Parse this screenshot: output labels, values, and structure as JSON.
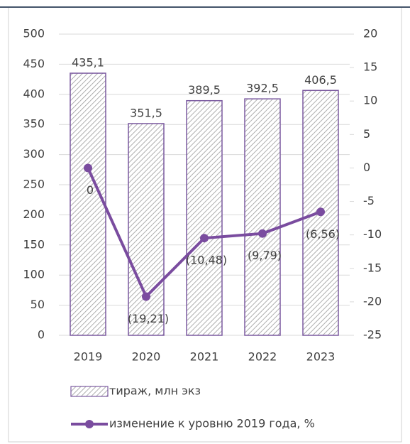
{
  "chart_data": {
    "type": "bar",
    "categories": [
      "2019",
      "2020",
      "2021",
      "2022",
      "2023"
    ],
    "series": [
      {
        "name": "тираж, млн экз",
        "type": "bar",
        "color": "#7b5aa0",
        "values": [
          435.1,
          351.5,
          389.5,
          392.5,
          406.5
        ],
        "value_labels": [
          "435,1",
          "351,5",
          "389,5",
          "392,5",
          "406,5"
        ]
      },
      {
        "name": "изменение к уровню 2019 года, %",
        "type": "line",
        "axis": "y2",
        "color": "#7a4c9f",
        "values": [
          0,
          -19.21,
          -10.48,
          -9.79,
          -6.56
        ],
        "value_labels": [
          "0",
          "(19,21)",
          "(10,48)",
          "(9,79)",
          "(6,56)"
        ]
      }
    ],
    "ylim": [
      0,
      500
    ],
    "yticks": [
      0,
      50,
      100,
      150,
      200,
      250,
      300,
      350,
      400,
      450,
      500
    ],
    "y2lim": [
      -25,
      20
    ],
    "y2ticks": [
      -25,
      -20,
      -15,
      -10,
      -5,
      0,
      5,
      10,
      15,
      20
    ],
    "grid": true
  }
}
